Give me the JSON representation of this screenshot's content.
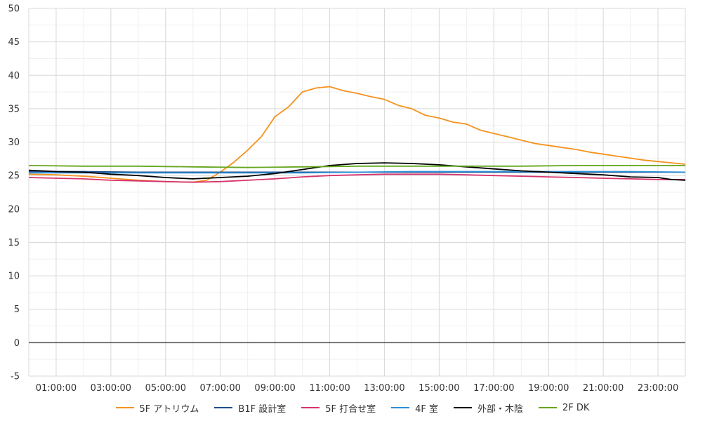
{
  "chart_data": {
    "type": "line",
    "title": "",
    "xlabel": "",
    "ylabel": "",
    "ylim": [
      -5,
      50
    ],
    "yticks": [
      "-5",
      "0",
      "5",
      "10",
      "15",
      "20",
      "25",
      "30",
      "35",
      "40",
      "45",
      "50"
    ],
    "xlim_hours": [
      0,
      24
    ],
    "xticks": [
      "01:00:00",
      "03:00:00",
      "05:00:00",
      "07:00:00",
      "09:00:00",
      "11:00:00",
      "13:00:00",
      "15:00:00",
      "17:00:00",
      "19:00:00",
      "21:00:00",
      "23:00:00"
    ],
    "grid": true,
    "legend_position": "bottom",
    "series": [
      {
        "name": "5F アトリウム",
        "color": "#f5921e",
        "x": [
          0,
          1,
          2,
          3,
          4,
          5,
          6,
          6.5,
          7,
          7.5,
          8,
          8.5,
          9,
          9.5,
          10,
          10.5,
          11,
          11.5,
          12,
          12.5,
          13,
          13.5,
          14,
          14.5,
          15,
          15.5,
          16,
          16.5,
          17,
          17.5,
          18,
          18.5,
          19,
          19.5,
          20,
          20.5,
          21,
          21.5,
          22,
          22.5,
          23,
          23.5,
          24
        ],
        "y": [
          25.2,
          25.1,
          24.9,
          24.6,
          24.3,
          24.1,
          24.0,
          24.3,
          25.5,
          27.0,
          28.8,
          30.8,
          33.8,
          35.3,
          37.5,
          38.1,
          38.3,
          37.7,
          37.3,
          36.8,
          36.4,
          35.5,
          35.0,
          34.0,
          33.6,
          33.0,
          32.7,
          31.8,
          31.3,
          30.8,
          30.3,
          29.8,
          29.5,
          29.2,
          28.9,
          28.5,
          28.2,
          27.9,
          27.6,
          27.3,
          27.1,
          26.9,
          26.7
        ]
      },
      {
        "name": "B1F 設計室",
        "color": "#1f4e8c",
        "x": [
          0,
          2,
          4,
          6,
          8,
          10,
          12,
          14,
          16,
          18,
          20,
          22,
          24
        ],
        "y": [
          25.6,
          25.6,
          25.5,
          25.5,
          25.5,
          25.5,
          25.5,
          25.5,
          25.5,
          25.5,
          25.5,
          25.5,
          25.5
        ]
      },
      {
        "name": "5F 打合せ室",
        "color": "#d6336c",
        "x": [
          0,
          1,
          2,
          3,
          4,
          5,
          6,
          7,
          8,
          9,
          10,
          11,
          12,
          13,
          14,
          15,
          16,
          17,
          18,
          19,
          20,
          21,
          22,
          23,
          24
        ],
        "y": [
          24.7,
          24.6,
          24.5,
          24.3,
          24.2,
          24.1,
          24.0,
          24.1,
          24.3,
          24.5,
          24.8,
          25.0,
          25.1,
          25.2,
          25.2,
          25.2,
          25.1,
          25.0,
          24.9,
          24.8,
          24.7,
          24.6,
          24.5,
          24.4,
          24.4
        ]
      },
      {
        "name": "4F 室",
        "color": "#2c8fd6",
        "x": [
          0,
          2,
          4,
          6,
          8,
          10,
          12,
          14,
          16,
          18,
          20,
          22,
          24
        ],
        "y": [
          25.4,
          25.4,
          25.4,
          25.4,
          25.4,
          25.4,
          25.5,
          25.6,
          25.6,
          25.6,
          25.6,
          25.6,
          25.5
        ]
      },
      {
        "name": "外部・木陰",
        "color": "#000000",
        "x": [
          0,
          1,
          2,
          3,
          4,
          5,
          6,
          7,
          8,
          9,
          10,
          11,
          12,
          13,
          14,
          15,
          16,
          17,
          18,
          19,
          20,
          21,
          22,
          23,
          23.5,
          24
        ],
        "y": [
          25.8,
          25.6,
          25.5,
          25.2,
          25.0,
          24.7,
          24.5,
          24.7,
          24.9,
          25.3,
          25.9,
          26.5,
          26.8,
          26.9,
          26.8,
          26.6,
          26.3,
          26.0,
          25.7,
          25.5,
          25.3,
          25.1,
          24.8,
          24.7,
          24.4,
          24.3
        ]
      },
      {
        "name": "2F DK",
        "color": "#66a61e",
        "x": [
          0,
          2,
          4,
          6,
          8,
          10,
          12,
          14,
          16,
          18,
          20,
          22,
          24
        ],
        "y": [
          26.5,
          26.4,
          26.4,
          26.3,
          26.2,
          26.3,
          26.4,
          26.4,
          26.4,
          26.4,
          26.5,
          26.5,
          26.5
        ]
      }
    ]
  }
}
